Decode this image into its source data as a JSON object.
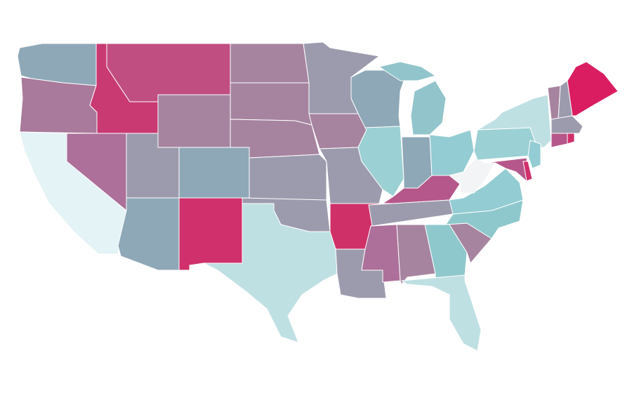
{
  "map": {
    "regions": [
      {
        "color": "#8ea8b8"
      },
      {
        "color": "#a97a9c"
      },
      {
        "color": "#c93a72"
      },
      {
        "color": "#c14e80"
      },
      {
        "color": "#a684a0"
      },
      {
        "color": "#e4f3f5"
      },
      {
        "color": "#ac709a"
      },
      {
        "color": "#9c9bae"
      },
      {
        "color": "#8ea8b8"
      },
      {
        "color": "#8ea8b8"
      },
      {
        "color": "#d0306b"
      },
      {
        "color": "#a684a0"
      },
      {
        "color": "#a684a0"
      },
      {
        "color": "#a684a0"
      },
      {
        "color": "#9c9bae"
      },
      {
        "color": "#9c9bae"
      },
      {
        "color": "#bfe0e3"
      },
      {
        "color": "#9c9bae"
      },
      {
        "color": "#a684a0"
      },
      {
        "color": "#9c9bae"
      },
      {
        "color": "#d03068"
      },
      {
        "color": "#9c9bae"
      },
      {
        "color": "#8ea8b8"
      },
      {
        "color": "#9bd0d4"
      },
      {
        "color": "#92c5cb"
      },
      {
        "color": "#92c5cb"
      },
      {
        "color": "#8ea8b8"
      },
      {
        "color": "#93ccd2"
      },
      {
        "color": "#b5578a"
      },
      {
        "color": "#9c9bae"
      },
      {
        "color": "#ac709a"
      },
      {
        "color": "#a684a0"
      },
      {
        "color": "#8ec8cc"
      },
      {
        "color": "#bfe0e3"
      },
      {
        "color": "#a684a0"
      },
      {
        "color": "#8ec8cc"
      },
      {
        "color": "#93ccd2"
      },
      {
        "color": "#f2f4f5"
      },
      {
        "color": "#9bd0d4"
      },
      {
        "color": "#bfe0e3"
      },
      {
        "color": "#93ccd2"
      },
      {
        "color": "#b5578a"
      },
      {
        "color": "#d0306b"
      },
      {
        "color": "#a684a0"
      },
      {
        "color": "#9c9bae"
      },
      {
        "color": "#da1d60"
      },
      {
        "color": "#9c9bae"
      },
      {
        "color": "#b5578a"
      },
      {
        "color": "#d03068"
      }
    ]
  }
}
